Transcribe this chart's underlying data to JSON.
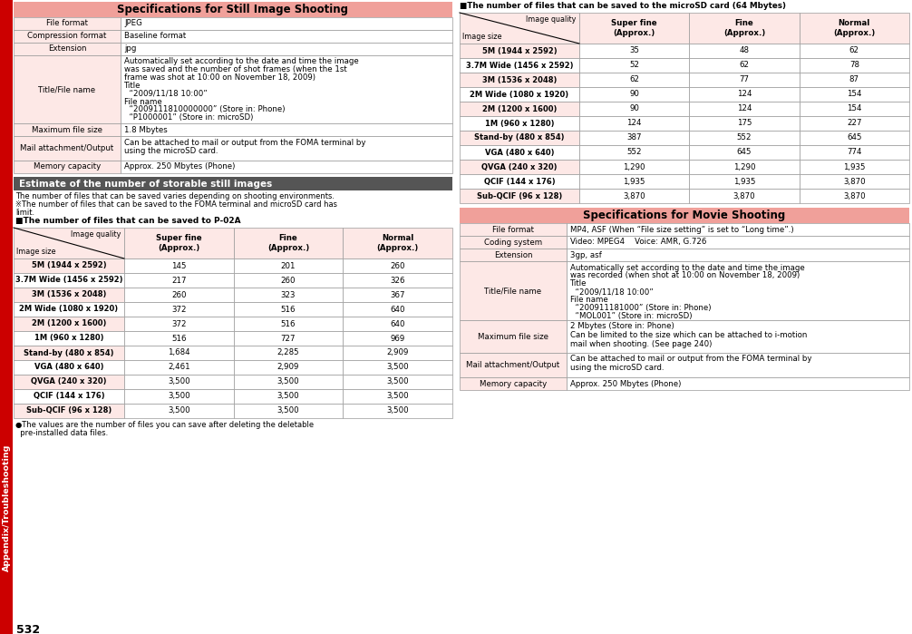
{
  "page_bg": "#ffffff",
  "header_pink": "#f0a09a",
  "header_estimate_color": "#555555",
  "pink_bg": "#fde8e6",
  "white_bg": "#ffffff",
  "border_color": "#999999",
  "left_bar_color": "#cc0000",
  "sidebar_text": "Appendix/Troubleshooting",
  "page_number": "532",
  "still_specs_title": "Specifications for Still Image Shooting",
  "still_specs": [
    [
      "File format",
      "JPEG"
    ],
    [
      "Compression format",
      "Baseline format"
    ],
    [
      "Extension",
      "jpg"
    ],
    [
      "Title/File name",
      "Automatically set according to the date and time the image\nwas saved and the number of shot frames (when the 1st\nframe was shot at 10:00 on November 18, 2009)\nTitle\n  “2009/11/18 10:00”\nFile name\n  “2009111810000000” (Store in: Phone)\n  “P1000001” (Store in: microSD)"
    ],
    [
      "Maximum file size",
      "1.8 Mbytes"
    ],
    [
      "Mail attachment/Output",
      "Can be attached to mail or output from the FOMA terminal by\nusing the microSD card."
    ],
    [
      "Memory capacity",
      "Approx. 250 Mbytes (Phone)"
    ]
  ],
  "still_row_heights": [
    14,
    14,
    14,
    75,
    14,
    27,
    14
  ],
  "estimate_title": "Estimate of the number of storable still images",
  "estimate_note1": "The number of files that can be saved varies depending on shooting environments.",
  "estimate_note2": "※The number of files that can be saved to the FOMA terminal and microSD card has",
  "estimate_note2b": "limit.",
  "p02a_title": "■The number of files that can be saved to P-02A",
  "footnote_line1": "●The values are the number of files you can save after deleting the deletable",
  "footnote_line2": "  pre-installed data files.",
  "image_sizes": [
    "5M (1944 x 2592)",
    "3.7M Wide (1456 x 2592)",
    "3M (1536 x 2048)",
    "2M Wide (1080 x 1920)",
    "2M (1200 x 1600)",
    "1M (960 x 1280)",
    "Stand-by (480 x 854)",
    "VGA (480 x 640)",
    "QVGA (240 x 320)",
    "QCIF (144 x 176)",
    "Sub-QCIF (96 x 128)"
  ],
  "p02a_super_fine": [
    "145",
    "217",
    "260",
    "372",
    "372",
    "516",
    "1,684",
    "2,461",
    "3,500",
    "3,500",
    "3,500"
  ],
  "p02a_fine": [
    "201",
    "260",
    "323",
    "516",
    "516",
    "727",
    "2,285",
    "2,909",
    "3,500",
    "3,500",
    "3,500"
  ],
  "p02a_normal": [
    "260",
    "326",
    "367",
    "640",
    "640",
    "969",
    "2,909",
    "3,500",
    "3,500",
    "3,500",
    "3,500"
  ],
  "microsd_title": "■The number of files that can be saved to the microSD card (64 Mbytes)",
  "microsd_super_fine": [
    "35",
    "52",
    "62",
    "90",
    "90",
    "124",
    "387",
    "552",
    "1,290",
    "1,935",
    "3,870"
  ],
  "microsd_fine": [
    "48",
    "62",
    "77",
    "124",
    "124",
    "175",
    "552",
    "645",
    "1,290",
    "1,935",
    "3,870"
  ],
  "microsd_normal": [
    "62",
    "78",
    "87",
    "154",
    "154",
    "227",
    "645",
    "774",
    "1,935",
    "3,870",
    "3,870"
  ],
  "col_headers": [
    "Super fine\n(Approx.)",
    "Fine\n(Approx.)",
    "Normal\n(Approx.)"
  ],
  "movie_title": "Specifications for Movie Shooting",
  "movie_specs": [
    [
      "File format",
      "MP4, ASF (When “File size setting” is set to “Long time”.)"
    ],
    [
      "Coding system",
      "Video: MPEG4    Voice: AMR, G.726"
    ],
    [
      "Extension",
      "3gp, asf"
    ],
    [
      "Title/File name",
      "Automatically set according to the date and time the image\nwas recorded (when shot at 10:00 on November 18, 2009)\nTitle\n  “2009/11/18 10:00”\nFile name\n  “200911181000” (Store in: Phone)\n  “MOL001” (Store in: microSD)"
    ],
    [
      "Maximum file size",
      "2 Mbytes (Store in: Phone)\nCan be limited to the size which can be attached to i-motion\nmail when shooting. (See page 240)"
    ],
    [
      "Mail attachment/Output",
      "Can be attached to mail or output from the FOMA terminal by\nusing the microSD card."
    ],
    [
      "Memory capacity",
      "Approx. 250 Mbytes (Phone)"
    ]
  ],
  "movie_row_heights": [
    14,
    14,
    14,
    65,
    36,
    27,
    14
  ]
}
